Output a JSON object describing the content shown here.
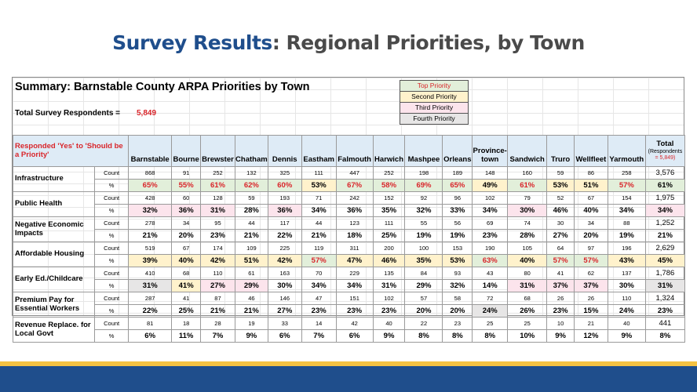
{
  "slide": {
    "title_accent": "Survey Results",
    "title_rest": ": Regional Priorities, by Town"
  },
  "sheet": {
    "title": "Summary: Barnstable County ARPA Priorities by Town",
    "respondents_label": "Total Survey Respondents =",
    "respondents_value": "5,849",
    "corner_label": "Responded 'Yes' to 'Should be a Priority'",
    "legend": [
      {
        "label": "Top Priority",
        "bg": "#e2efda",
        "color": "#d9252a"
      },
      {
        "label": "Second Priority",
        "bg": "#fff2cc",
        "color": "#000000"
      },
      {
        "label": "Third Priority",
        "bg": "#fce4ec",
        "color": "#000000"
      },
      {
        "label": "Fourth Priority",
        "bg": "#e7e6e6",
        "color": "#000000"
      }
    ],
    "towns": [
      "Barnstable",
      "Bourne",
      "Brewster",
      "Chatham",
      "Dennis",
      "Eastham",
      "Falmouth",
      "Harwich",
      "Mashpee",
      "Orleans",
      "Province-town",
      "Sandwich",
      "Truro",
      "Wellfleet",
      "Yarmouth"
    ],
    "total_header": "Total",
    "total_sub_prefix": "(Respondents",
    "total_sub_value": "= 5,849)",
    "count_label": "Count",
    "pct_label": "%",
    "rows": [
      {
        "category": "Infrastructure",
        "counts": [
          "868",
          "91",
          "252",
          "132",
          "325",
          "111",
          "447",
          "252",
          "198",
          "189",
          "148",
          "160",
          "59",
          "86",
          "258"
        ],
        "pcts": [
          "65%",
          "55%",
          "61%",
          "62%",
          "60%",
          "53%",
          "67%",
          "58%",
          "69%",
          "65%",
          "49%",
          "61%",
          "53%",
          "51%",
          "57%"
        ],
        "pct_tiers": [
          1,
          1,
          1,
          1,
          1,
          2,
          1,
          1,
          1,
          1,
          2,
          1,
          2,
          2,
          1
        ],
        "total_count": "3,576",
        "total_pct": "61%",
        "total_tier": 1
      },
      {
        "category": "Public Health",
        "counts": [
          "428",
          "60",
          "128",
          "59",
          "193",
          "71",
          "242",
          "152",
          "92",
          "96",
          "102",
          "79",
          "52",
          "67",
          "154"
        ],
        "pcts": [
          "32%",
          "36%",
          "31%",
          "28%",
          "36%",
          "34%",
          "36%",
          "35%",
          "32%",
          "33%",
          "34%",
          "30%",
          "46%",
          "40%",
          "34%"
        ],
        "pct_tiers": [
          3,
          3,
          3,
          0,
          3,
          0,
          0,
          0,
          0,
          0,
          0,
          3,
          0,
          0,
          0
        ],
        "total_count": "1,975",
        "total_pct": "34%",
        "total_tier": 3
      },
      {
        "category": "Negative Economic Impacts",
        "counts": [
          "278",
          "34",
          "95",
          "44",
          "117",
          "44",
          "123",
          "111",
          "55",
          "56",
          "69",
          "74",
          "30",
          "34",
          "88"
        ],
        "pcts": [
          "21%",
          "20%",
          "23%",
          "21%",
          "22%",
          "21%",
          "18%",
          "25%",
          "19%",
          "19%",
          "23%",
          "28%",
          "27%",
          "20%",
          "19%"
        ],
        "pct_tiers": [
          0,
          0,
          0,
          0,
          0,
          0,
          0,
          0,
          0,
          0,
          0,
          0,
          0,
          0,
          0
        ],
        "total_count": "1,252",
        "total_pct": "21%",
        "total_tier": 0
      },
      {
        "category": "Affordable Housing",
        "counts": [
          "519",
          "67",
          "174",
          "109",
          "225",
          "119",
          "311",
          "200",
          "100",
          "153",
          "190",
          "105",
          "64",
          "97",
          "196"
        ],
        "pcts": [
          "39%",
          "40%",
          "42%",
          "51%",
          "42%",
          "57%",
          "47%",
          "46%",
          "35%",
          "53%",
          "63%",
          "40%",
          "57%",
          "57%",
          "43%"
        ],
        "pct_tiers": [
          2,
          2,
          2,
          2,
          2,
          1,
          2,
          2,
          2,
          2,
          1,
          2,
          1,
          1,
          2
        ],
        "total_count": "2,629",
        "total_pct": "45%",
        "total_tier": 2
      },
      {
        "category": "Early Ed./Childcare",
        "counts": [
          "410",
          "68",
          "110",
          "61",
          "163",
          "70",
          "229",
          "135",
          "84",
          "93",
          "43",
          "80",
          "41",
          "62",
          "137"
        ],
        "pcts": [
          "31%",
          "41%",
          "27%",
          "29%",
          "30%",
          "34%",
          "34%",
          "31%",
          "29%",
          "32%",
          "14%",
          "31%",
          "37%",
          "37%",
          "30%"
        ],
        "pct_tiers": [
          4,
          2,
          3,
          3,
          0,
          0,
          0,
          0,
          0,
          0,
          0,
          3,
          3,
          3,
          0
        ],
        "total_count": "1,786",
        "total_pct": "31%",
        "total_tier": 4
      },
      {
        "category": "Premium Pay for Essential Workers",
        "counts": [
          "287",
          "41",
          "87",
          "46",
          "146",
          "47",
          "151",
          "102",
          "57",
          "58",
          "72",
          "68",
          "26",
          "26",
          "110"
        ],
        "pcts": [
          "22%",
          "25%",
          "21%",
          "21%",
          "27%",
          "23%",
          "23%",
          "23%",
          "20%",
          "20%",
          "24%",
          "26%",
          "23%",
          "15%",
          "24%"
        ],
        "pct_tiers": [
          0,
          0,
          0,
          0,
          0,
          0,
          0,
          0,
          0,
          0,
          4,
          0,
          0,
          0,
          0
        ],
        "total_count": "1,324",
        "total_pct": "23%",
        "total_tier": 0
      },
      {
        "category": "Revenue Replace. for Local Govt",
        "counts": [
          "81",
          "18",
          "28",
          "19",
          "33",
          "14",
          "42",
          "40",
          "22",
          "23",
          "25",
          "25",
          "10",
          "21",
          "40"
        ],
        "pcts": [
          "6%",
          "11%",
          "7%",
          "9%",
          "6%",
          "7%",
          "6%",
          "9%",
          "8%",
          "8%",
          "8%",
          "10%",
          "9%",
          "12%",
          "9%"
        ],
        "pct_tiers": [
          0,
          0,
          0,
          0,
          0,
          0,
          0,
          0,
          0,
          0,
          0,
          0,
          0,
          0,
          0
        ],
        "total_count": "441",
        "total_pct": "8%",
        "total_tier": 0
      }
    ]
  },
  "colors": {
    "title_accent": "#1f4e8c",
    "title_text": "#4a4a4a",
    "header_fill": "#deebf6",
    "footer_bar": "#1f4e8c",
    "footer_stripe": "#f5c242",
    "tier_1": "#e2efda",
    "tier_2": "#fff2cc",
    "tier_3": "#fce4ec",
    "tier_4": "#e7e6e6",
    "highlight_text": "#d9252a"
  }
}
